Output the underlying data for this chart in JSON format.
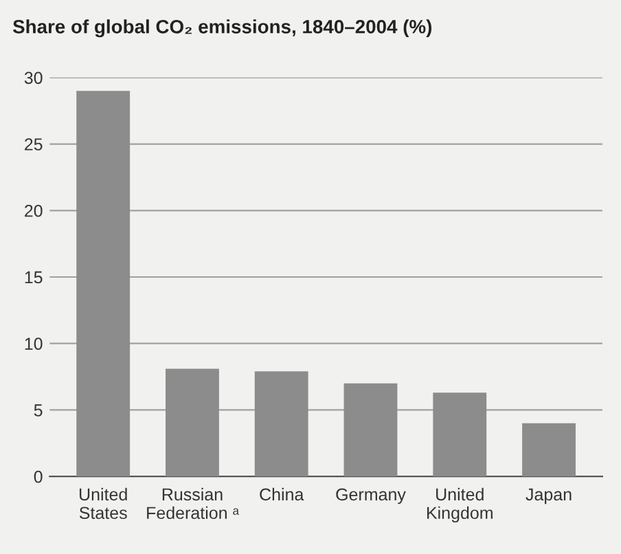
{
  "chart_data": {
    "type": "bar",
    "title": "Share of global CO₂ emissions, 1840–2004 (%)",
    "categories": [
      "United\nStates",
      "Russian\nFederation ᵃ",
      "China",
      "Germany",
      "United\nKingdom",
      "Japan"
    ],
    "values": [
      29,
      8.1,
      7.9,
      7.0,
      6.3,
      4.0
    ],
    "color": "#8c8c8c",
    "ylim": [
      0,
      30
    ],
    "yticks": [
      0,
      5,
      10,
      15,
      20,
      25,
      30
    ],
    "grid": "y"
  }
}
